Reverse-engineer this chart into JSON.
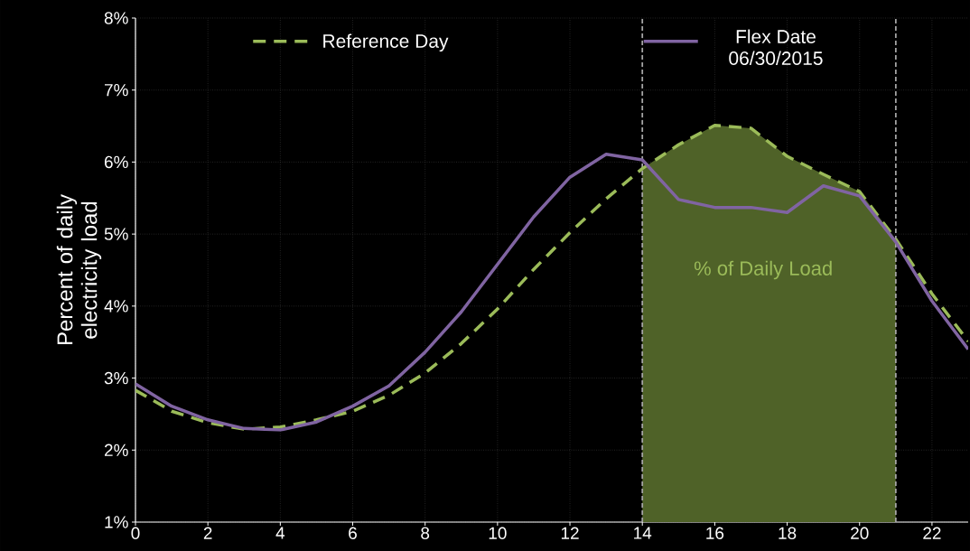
{
  "chart_data": {
    "type": "line",
    "ylabel": "Percent of daily electricity load",
    "x": [
      0,
      1,
      2,
      3,
      4,
      5,
      6,
      7,
      8,
      9,
      10,
      11,
      12,
      13,
      14,
      15,
      16,
      17,
      18,
      19,
      20,
      21,
      22,
      23
    ],
    "series": [
      {
        "name": "Reference Day",
        "color": "#9bbb59",
        "line_style": "dashed",
        "values": [
          2.83,
          2.54,
          2.38,
          2.29,
          2.32,
          2.42,
          2.54,
          2.76,
          3.07,
          3.48,
          3.96,
          4.51,
          5.02,
          5.49,
          5.91,
          6.24,
          6.51,
          6.47,
          6.08,
          5.83,
          5.59,
          4.93,
          4.17,
          3.51
        ]
      },
      {
        "name": "Flex Date 06/30/2015",
        "color": "#8064a2",
        "line_style": "solid",
        "values": [
          2.92,
          2.61,
          2.42,
          2.3,
          2.28,
          2.39,
          2.61,
          2.89,
          3.36,
          3.92,
          4.58,
          5.24,
          5.79,
          6.11,
          6.03,
          5.48,
          5.37,
          5.37,
          5.3,
          5.67,
          5.53,
          4.89,
          4.07,
          3.4
        ]
      },
      {
        "type": "area",
        "color": "#4f6228",
        "x": [
          14,
          15,
          16,
          17,
          18,
          19,
          20,
          21
        ],
        "values": [
          5.91,
          6.24,
          6.51,
          6.47,
          6.08,
          5.83,
          5.59,
          4.93
        ]
      }
    ],
    "ref_lines": [
      {
        "axis": "x",
        "value": 14,
        "color": "#a6a6a6",
        "line_style": "dashed"
      },
      {
        "axis": "x",
        "value": 21,
        "color": "#a6a6a6",
        "line_style": "dashed"
      }
    ],
    "annotations": [
      "% of Daily Load"
    ],
    "xlim": [
      0,
      23
    ],
    "xticks": [
      0,
      2,
      4,
      6,
      8,
      10,
      12,
      14,
      16,
      18,
      20,
      22
    ],
    "ylim": [
      1,
      8
    ],
    "yticks": [
      {
        "value": 1,
        "label": "1%"
      },
      {
        "value": 2,
        "label": "2%"
      },
      {
        "value": 3,
        "label": "3%"
      },
      {
        "value": 4,
        "label": "4%"
      },
      {
        "value": 5,
        "label": "5%"
      },
      {
        "value": 6,
        "label": "6%"
      },
      {
        "value": 7,
        "label": "7%"
      },
      {
        "value": 8,
        "label": "8%"
      }
    ],
    "grid": true,
    "legend": "top",
    "marker": "none"
  }
}
